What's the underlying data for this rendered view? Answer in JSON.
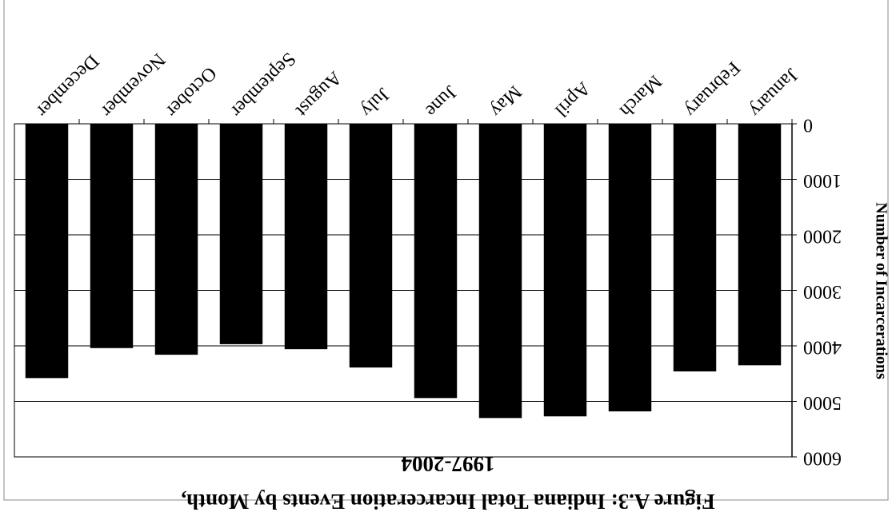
{
  "chart_data": {
    "type": "bar",
    "title": "Figure A.3:  Indiana Total Incarceration Events by Month,",
    "subtitle": "1997-2004",
    "y_label": "Number of Incarcerations",
    "categories": [
      "January",
      "February",
      "March",
      "April",
      "May",
      "June",
      "July",
      "August",
      "September",
      "October",
      "November",
      "December"
    ],
    "values": [
      4350,
      4460,
      5180,
      5270,
      5300,
      4940,
      4390,
      4060,
      3970,
      4160,
      4040,
      4580
    ],
    "color": "#000000",
    "ylim": [
      0,
      6000
    ],
    "yticks": [
      0,
      1000,
      2000,
      3000,
      4000,
      5000,
      6000
    ],
    "grid": true
  }
}
